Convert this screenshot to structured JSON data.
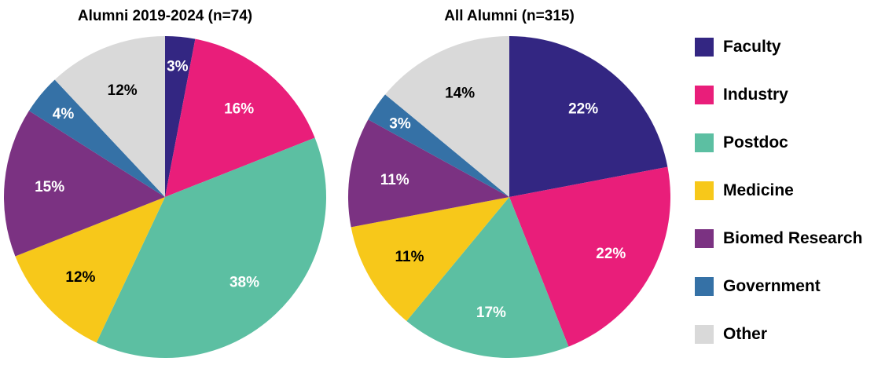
{
  "colors": {
    "Faculty": "#332682",
    "Industry": "#e91e7a",
    "Postdoc": "#5cbfa2",
    "Medicine": "#f7c81a",
    "Biomed Research": "#7b3282",
    "Government": "#3571a6",
    "Other": "#d9d9d9"
  },
  "legend": {
    "items": [
      "Faculty",
      "Industry",
      "Postdoc",
      "Medicine",
      "Biomed Research",
      "Government",
      "Other"
    ]
  },
  "chart_data": [
    {
      "type": "pie",
      "title": "Alumni 2019-2024 (n=74)",
      "categories": [
        "Faculty",
        "Industry",
        "Postdoc",
        "Medicine",
        "Biomed Research",
        "Government",
        "Other"
      ],
      "values": [
        3,
        16,
        38,
        12,
        15,
        4,
        12
      ],
      "labels": [
        "3%",
        "16%",
        "38%",
        "12%",
        "15%",
        "4%",
        "12%"
      ],
      "legend": "right"
    },
    {
      "type": "pie",
      "title": "All Alumni (n=315)",
      "categories": [
        "Faculty",
        "Industry",
        "Postdoc",
        "Medicine",
        "Biomed Research",
        "Government",
        "Other"
      ],
      "values": [
        22,
        22,
        17,
        11,
        11,
        3,
        14
      ],
      "labels": [
        "22%",
        "22%",
        "17%",
        "11%",
        "11%",
        "3%",
        "14%"
      ],
      "legend": "right"
    }
  ]
}
